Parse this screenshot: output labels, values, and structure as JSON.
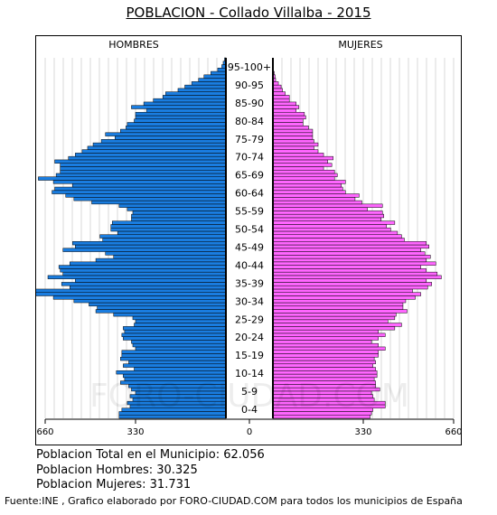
{
  "title": "POBLACION - Collado Villalba - 2015",
  "labels": {
    "male": "HOMBRES",
    "female": "MUJERES"
  },
  "watermark": "FORO-CIUDAD.COM",
  "stats": {
    "total": "Poblacion Total en el Municipio: 62.056",
    "men": "Poblacion Hombres: 30.325",
    "women": "Poblacion Mujeres: 31.731"
  },
  "source": "Fuente:INE , Grafico elaborado por FORO-CIUDAD.COM para todos los municipios de España",
  "colors": {
    "male": "#1a7de0",
    "female": "#ff66ff",
    "grid": "#d8d8d8",
    "bar_edge": "#000000"
  },
  "chart_data": {
    "type": "bar",
    "orientation": "horizontal-pyramid",
    "x_ticks": [
      "660",
      "330",
      "0",
      "330",
      "660"
    ],
    "xlim": [
      0,
      660
    ],
    "age_groups": [
      "0-4",
      "5-9",
      "10-14",
      "15-19",
      "20-24",
      "25-29",
      "30-34",
      "35-39",
      "40-44",
      "45-49",
      "50-54",
      "55-59",
      "60-64",
      "65-69",
      "70-74",
      "75-79",
      "80-84",
      "85-90",
      "90-95",
      "95-100+"
    ],
    "ages": [
      0,
      1,
      2,
      3,
      4,
      5,
      6,
      7,
      8,
      9,
      10,
      11,
      12,
      13,
      14,
      15,
      16,
      17,
      18,
      19,
      20,
      21,
      22,
      23,
      24,
      25,
      26,
      27,
      27,
      28,
      29,
      30,
      31,
      32,
      33,
      34,
      35,
      36,
      37,
      38,
      39,
      40,
      41,
      42,
      43,
      44,
      45,
      46,
      47,
      48,
      49,
      50,
      51,
      52,
      53,
      54,
      55,
      56,
      57,
      58,
      59,
      60,
      61,
      62,
      63,
      64,
      65,
      66,
      67,
      68,
      69,
      70,
      71,
      72,
      73,
      74,
      75,
      76,
      77,
      78,
      79,
      80,
      81,
      82,
      83,
      84,
      85,
      86,
      87,
      88,
      89,
      90,
      91,
      92,
      93,
      94,
      95,
      96,
      97,
      98,
      99,
      100
    ],
    "series": [
      {
        "name": "HOMBRES",
        "values": [
          390,
          390,
          380,
          350,
          360,
          340,
          350,
          330,
          345,
          355,
          385,
          370,
          375,
          400,
          335,
          375,
          355,
          385,
          380,
          380,
          330,
          340,
          345,
          375,
          380,
          370,
          375,
          335,
          330,
          340,
          410,
          475,
          470,
          500,
          555,
          630,
          770,
          745,
          570,
          600,
          550,
          650,
          595,
          605,
          610,
          570,
          475,
          410,
          440,
          595,
          550,
          560,
          450,
          460,
          395,
          420,
          420,
          415,
          345,
          345,
          340,
          360,
          390,
          490,
          555,
          585,
          635,
          625,
          560,
          630,
          685,
          620,
          605,
          605,
          605,
          625,
          575,
          550,
          525,
          505,
          485,
          455,
          405,
          440,
          385,
          365,
          360,
          335,
          330,
          330,
          290,
          345,
          300,
          265,
          230,
          220,
          175,
          150,
          125,
          100,
          80,
          55,
          30,
          15,
          10,
          5
        ]
      },
      {
        "name": "MUJERES",
        "values": [
          355,
          360,
          365,
          410,
          410,
          370,
          365,
          360,
          390,
          375,
          375,
          370,
          380,
          380,
          375,
          365,
          375,
          370,
          385,
          385,
          410,
          385,
          360,
          385,
          410,
          385,
          445,
          470,
          420,
          445,
          450,
          490,
          475,
          475,
          485,
          520,
          540,
          510,
          565,
          580,
          560,
          615,
          600,
          560,
          540,
          595,
          560,
          575,
          555,
          540,
          570,
          560,
          480,
          470,
          455,
          430,
          415,
          445,
          395,
          405,
          400,
          345,
          400,
          325,
          300,
          315,
          265,
          255,
          250,
          265,
          225,
          235,
          225,
          185,
          215,
          200,
          220,
          185,
          165,
          150,
          165,
          150,
          145,
          145,
          145,
          130,
          110,
          110,
          120,
          115,
          85,
          95,
          85,
          60,
          60,
          45,
          35,
          30,
          20,
          10,
          8,
          5
        ]
      }
    ]
  }
}
